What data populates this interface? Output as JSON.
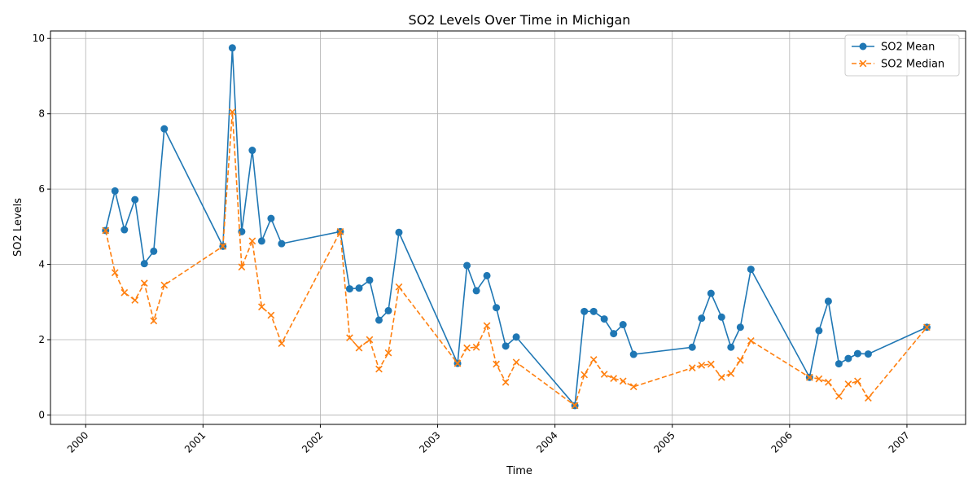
{
  "chart_data": {
    "type": "line",
    "title": "SO2 Levels Over Time in Michigan",
    "xlabel": "Time",
    "ylabel": "SO2 Levels",
    "xlim": [
      1999.7,
      2007.5
    ],
    "ylim": [
      -0.25,
      10.2
    ],
    "x_ticks": [
      2000,
      2001,
      2002,
      2003,
      2004,
      2005,
      2006,
      2007
    ],
    "x_tick_labels": [
      "2000",
      "2001",
      "2002",
      "2003",
      "2004",
      "2005",
      "2006",
      "2007"
    ],
    "y_ticks": [
      0,
      2,
      4,
      6,
      8,
      10
    ],
    "y_tick_labels": [
      "0",
      "2",
      "4",
      "6",
      "8",
      "10"
    ],
    "grid": true,
    "legend_position": "top-right",
    "x": [
      2000.17,
      2000.25,
      2000.33,
      2000.42,
      2000.5,
      2000.58,
      2000.67,
      2001.17,
      2001.25,
      2001.33,
      2001.42,
      2001.5,
      2001.58,
      2001.67,
      2002.17,
      2002.25,
      2002.33,
      2002.42,
      2002.5,
      2002.58,
      2002.67,
      2003.17,
      2003.25,
      2003.33,
      2003.42,
      2003.5,
      2003.58,
      2003.67,
      2004.17,
      2004.25,
      2004.33,
      2004.42,
      2004.5,
      2004.58,
      2004.67,
      2005.17,
      2005.25,
      2005.33,
      2005.42,
      2005.5,
      2005.58,
      2005.67,
      2006.17,
      2006.25,
      2006.33,
      2006.42,
      2006.5,
      2006.58,
      2006.67,
      2007.17
    ],
    "series": [
      {
        "name": "SO2 Mean",
        "color": "#1f77b4",
        "style": "solid",
        "marker": "circle",
        "values": [
          4.9,
          5.95,
          4.92,
          5.72,
          4.02,
          4.35,
          7.6,
          4.48,
          9.75,
          4.87,
          7.03,
          4.62,
          5.22,
          4.55,
          4.87,
          3.35,
          3.37,
          3.58,
          2.52,
          2.77,
          4.85,
          1.37,
          3.97,
          3.3,
          3.7,
          2.85,
          1.83,
          2.07,
          0.25,
          2.75,
          2.75,
          2.55,
          2.16,
          2.4,
          1.61,
          1.8,
          2.57,
          3.23,
          2.6,
          1.8,
          2.33,
          3.87,
          1.0,
          2.24,
          3.02,
          1.36,
          1.5,
          1.63,
          1.62,
          2.33
        ]
      },
      {
        "name": "SO2 Median",
        "color": "#ff7f0e",
        "style": "dashed",
        "marker": "x",
        "values": [
          4.9,
          3.78,
          3.25,
          3.05,
          3.5,
          2.5,
          3.45,
          4.48,
          8.05,
          3.93,
          4.62,
          2.87,
          2.65,
          1.9,
          4.87,
          2.05,
          1.78,
          2.0,
          1.22,
          1.65,
          3.4,
          1.37,
          1.78,
          1.8,
          2.37,
          1.35,
          0.87,
          1.4,
          0.25,
          1.07,
          1.47,
          1.08,
          0.97,
          0.9,
          0.75,
          1.25,
          1.32,
          1.35,
          1.0,
          1.1,
          1.45,
          1.97,
          1.0,
          0.96,
          0.87,
          0.5,
          0.82,
          0.9,
          0.45,
          2.33
        ]
      }
    ]
  }
}
